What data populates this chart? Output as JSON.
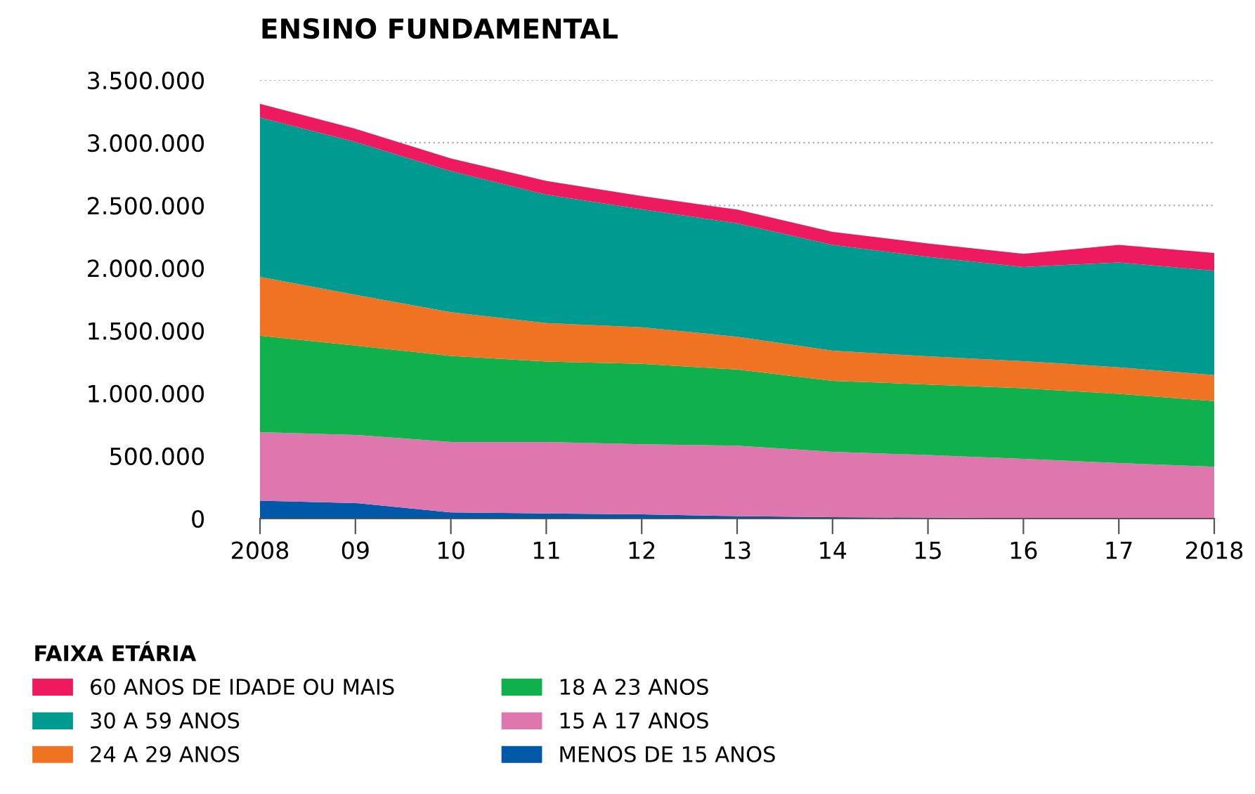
{
  "chart_data": {
    "type": "area",
    "stacked": true,
    "title": "ENSINO FUNDAMENTAL",
    "legend_title": "FAIXA ETÁRIA",
    "legend": "bottom",
    "grid": "y",
    "categories": [
      "2008",
      "09",
      "10",
      "11",
      "12",
      "13",
      "14",
      "15",
      "16",
      "17",
      "2018"
    ],
    "ylim": [
      0,
      3500000
    ],
    "yticks": [
      {
        "value": 0,
        "label": "0"
      },
      {
        "value": 500000,
        "label": "500.000"
      },
      {
        "value": 1000000,
        "label": "1.000.000"
      },
      {
        "value": 1500000,
        "label": "1.500.000"
      },
      {
        "value": 2000000,
        "label": "2.000.000"
      },
      {
        "value": 2500000,
        "label": "2.500.000"
      },
      {
        "value": 3000000,
        "label": "3.000.000"
      },
      {
        "value": 3500000,
        "label": "3.500.000"
      }
    ],
    "series": [
      {
        "name": "MENOS DE 15 ANOS",
        "color": "#0058a8",
        "values": [
          143000,
          124000,
          49000,
          41000,
          34000,
          19000,
          11000,
          8000,
          4000,
          4000,
          3000
        ]
      },
      {
        "name": "15 A 17 ANOS",
        "color": "#de77ad",
        "values": [
          547000,
          544000,
          563000,
          571000,
          559000,
          563000,
          522000,
          499000,
          473000,
          439000,
          410000
        ]
      },
      {
        "name": "18 A 23 ANOS",
        "color": "#10b04c",
        "values": [
          770000,
          713000,
          687000,
          642000,
          642000,
          608000,
          567000,
          563000,
          563000,
          552000,
          525000
        ]
      },
      {
        "name": "24 A 29 ANOS",
        "color": "#f07223",
        "values": [
          469000,
          405000,
          349000,
          307000,
          292000,
          262000,
          240000,
          225000,
          217000,
          213000,
          207000
        ]
      },
      {
        "name": "30 A 59 ANOS",
        "color": "#009b90",
        "values": [
          1272000,
          1220000,
          1125000,
          1025000,
          942000,
          905000,
          844000,
          795000,
          751000,
          837000,
          833000
        ]
      },
      {
        "name": "60 ANOS DE IDADE OU MAIS",
        "color": "#ed1a5f",
        "values": [
          109000,
          105000,
          102000,
          109000,
          106000,
          109000,
          105000,
          106000,
          105000,
          139000,
          142000
        ]
      }
    ]
  }
}
